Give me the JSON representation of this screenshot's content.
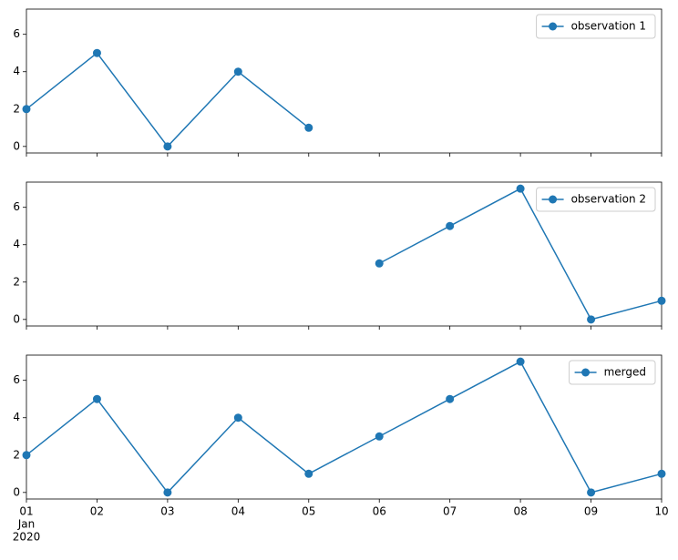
{
  "chart_data": [
    {
      "type": "line",
      "x": [
        "2020-01-01",
        "2020-01-02",
        "2020-01-03",
        "2020-01-04",
        "2020-01-05"
      ],
      "series": [
        {
          "name": "observation 1",
          "color": "#1f77b4",
          "values": [
            2,
            5,
            0,
            4,
            1
          ]
        }
      ],
      "xlim": [
        "2020-01-01",
        "2020-01-10"
      ],
      "ylim": [
        -0.35,
        7.35
      ],
      "yticks": [
        0,
        2,
        4,
        6
      ],
      "legend": "upper right"
    },
    {
      "type": "line",
      "x": [
        "2020-01-06",
        "2020-01-07",
        "2020-01-08",
        "2020-01-09",
        "2020-01-10"
      ],
      "series": [
        {
          "name": "observation 2",
          "color": "#1f77b4",
          "values": [
            3,
            5,
            7,
            0,
            1
          ]
        }
      ],
      "xlim": [
        "2020-01-01",
        "2020-01-10"
      ],
      "ylim": [
        -0.35,
        7.35
      ],
      "yticks": [
        0,
        2,
        4,
        6
      ],
      "legend": "upper right"
    },
    {
      "type": "line",
      "x": [
        "2020-01-01",
        "2020-01-02",
        "2020-01-03",
        "2020-01-04",
        "2020-01-05",
        "2020-01-06",
        "2020-01-07",
        "2020-01-08",
        "2020-01-09",
        "2020-01-10"
      ],
      "series": [
        {
          "name": "merged",
          "color": "#1f77b4",
          "values": [
            2,
            5,
            0,
            4,
            1,
            3,
            5,
            7,
            0,
            1
          ]
        }
      ],
      "xlim": [
        "2020-01-01",
        "2020-01-10"
      ],
      "ylim": [
        -0.35,
        7.35
      ],
      "yticks": [
        0,
        2,
        4,
        6
      ],
      "legend": "upper right",
      "xticks": [
        {
          "value": "2020-01-01",
          "label": "01"
        },
        {
          "value": "2020-01-02",
          "label": "02"
        },
        {
          "value": "2020-01-03",
          "label": "03"
        },
        {
          "value": "2020-01-04",
          "label": "04"
        },
        {
          "value": "2020-01-05",
          "label": "05"
        },
        {
          "value": "2020-01-06",
          "label": "06"
        },
        {
          "value": "2020-01-07",
          "label": "07"
        },
        {
          "value": "2020-01-08",
          "label": "08"
        },
        {
          "value": "2020-01-09",
          "label": "09"
        },
        {
          "value": "2020-01-10",
          "label": "10"
        }
      ],
      "x_date_lines": [
        "Jan",
        "2020"
      ]
    }
  ]
}
